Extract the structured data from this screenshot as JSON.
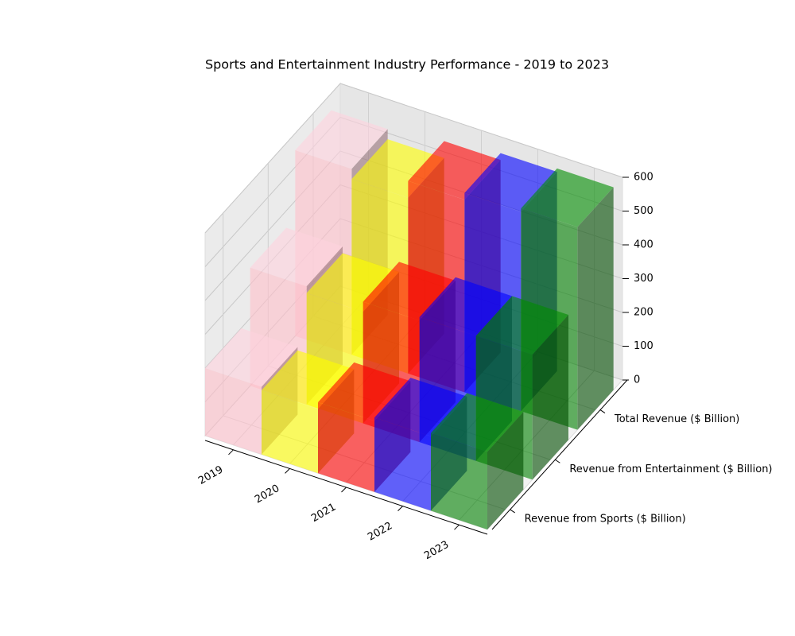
{
  "chart_data": {
    "type": "bar3d",
    "title": "Sports and Entertainment Industry Performance - 2019 to 2023",
    "categories": [
      "2019",
      "2020",
      "2021",
      "2022",
      "2023"
    ],
    "colors": [
      "pink",
      "yellow",
      "red",
      "blue",
      "green"
    ],
    "series": [
      {
        "name": "Revenue from Sports ($ Billion)",
        "values": [
          200,
          190,
          210,
          220,
          230
        ]
      },
      {
        "name": "Revenue from Entertainment ($ Billion)",
        "values": [
          350,
          330,
          360,
          370,
          370
        ]
      },
      {
        "name": "Total Revenue ($ Billion)",
        "values": [
          550,
          520,
          570,
          590,
          600
        ]
      }
    ],
    "zlim": [
      0,
      600
    ],
    "zticks": [
      0,
      100,
      200,
      300,
      400,
      500,
      600
    ],
    "grid": true
  }
}
